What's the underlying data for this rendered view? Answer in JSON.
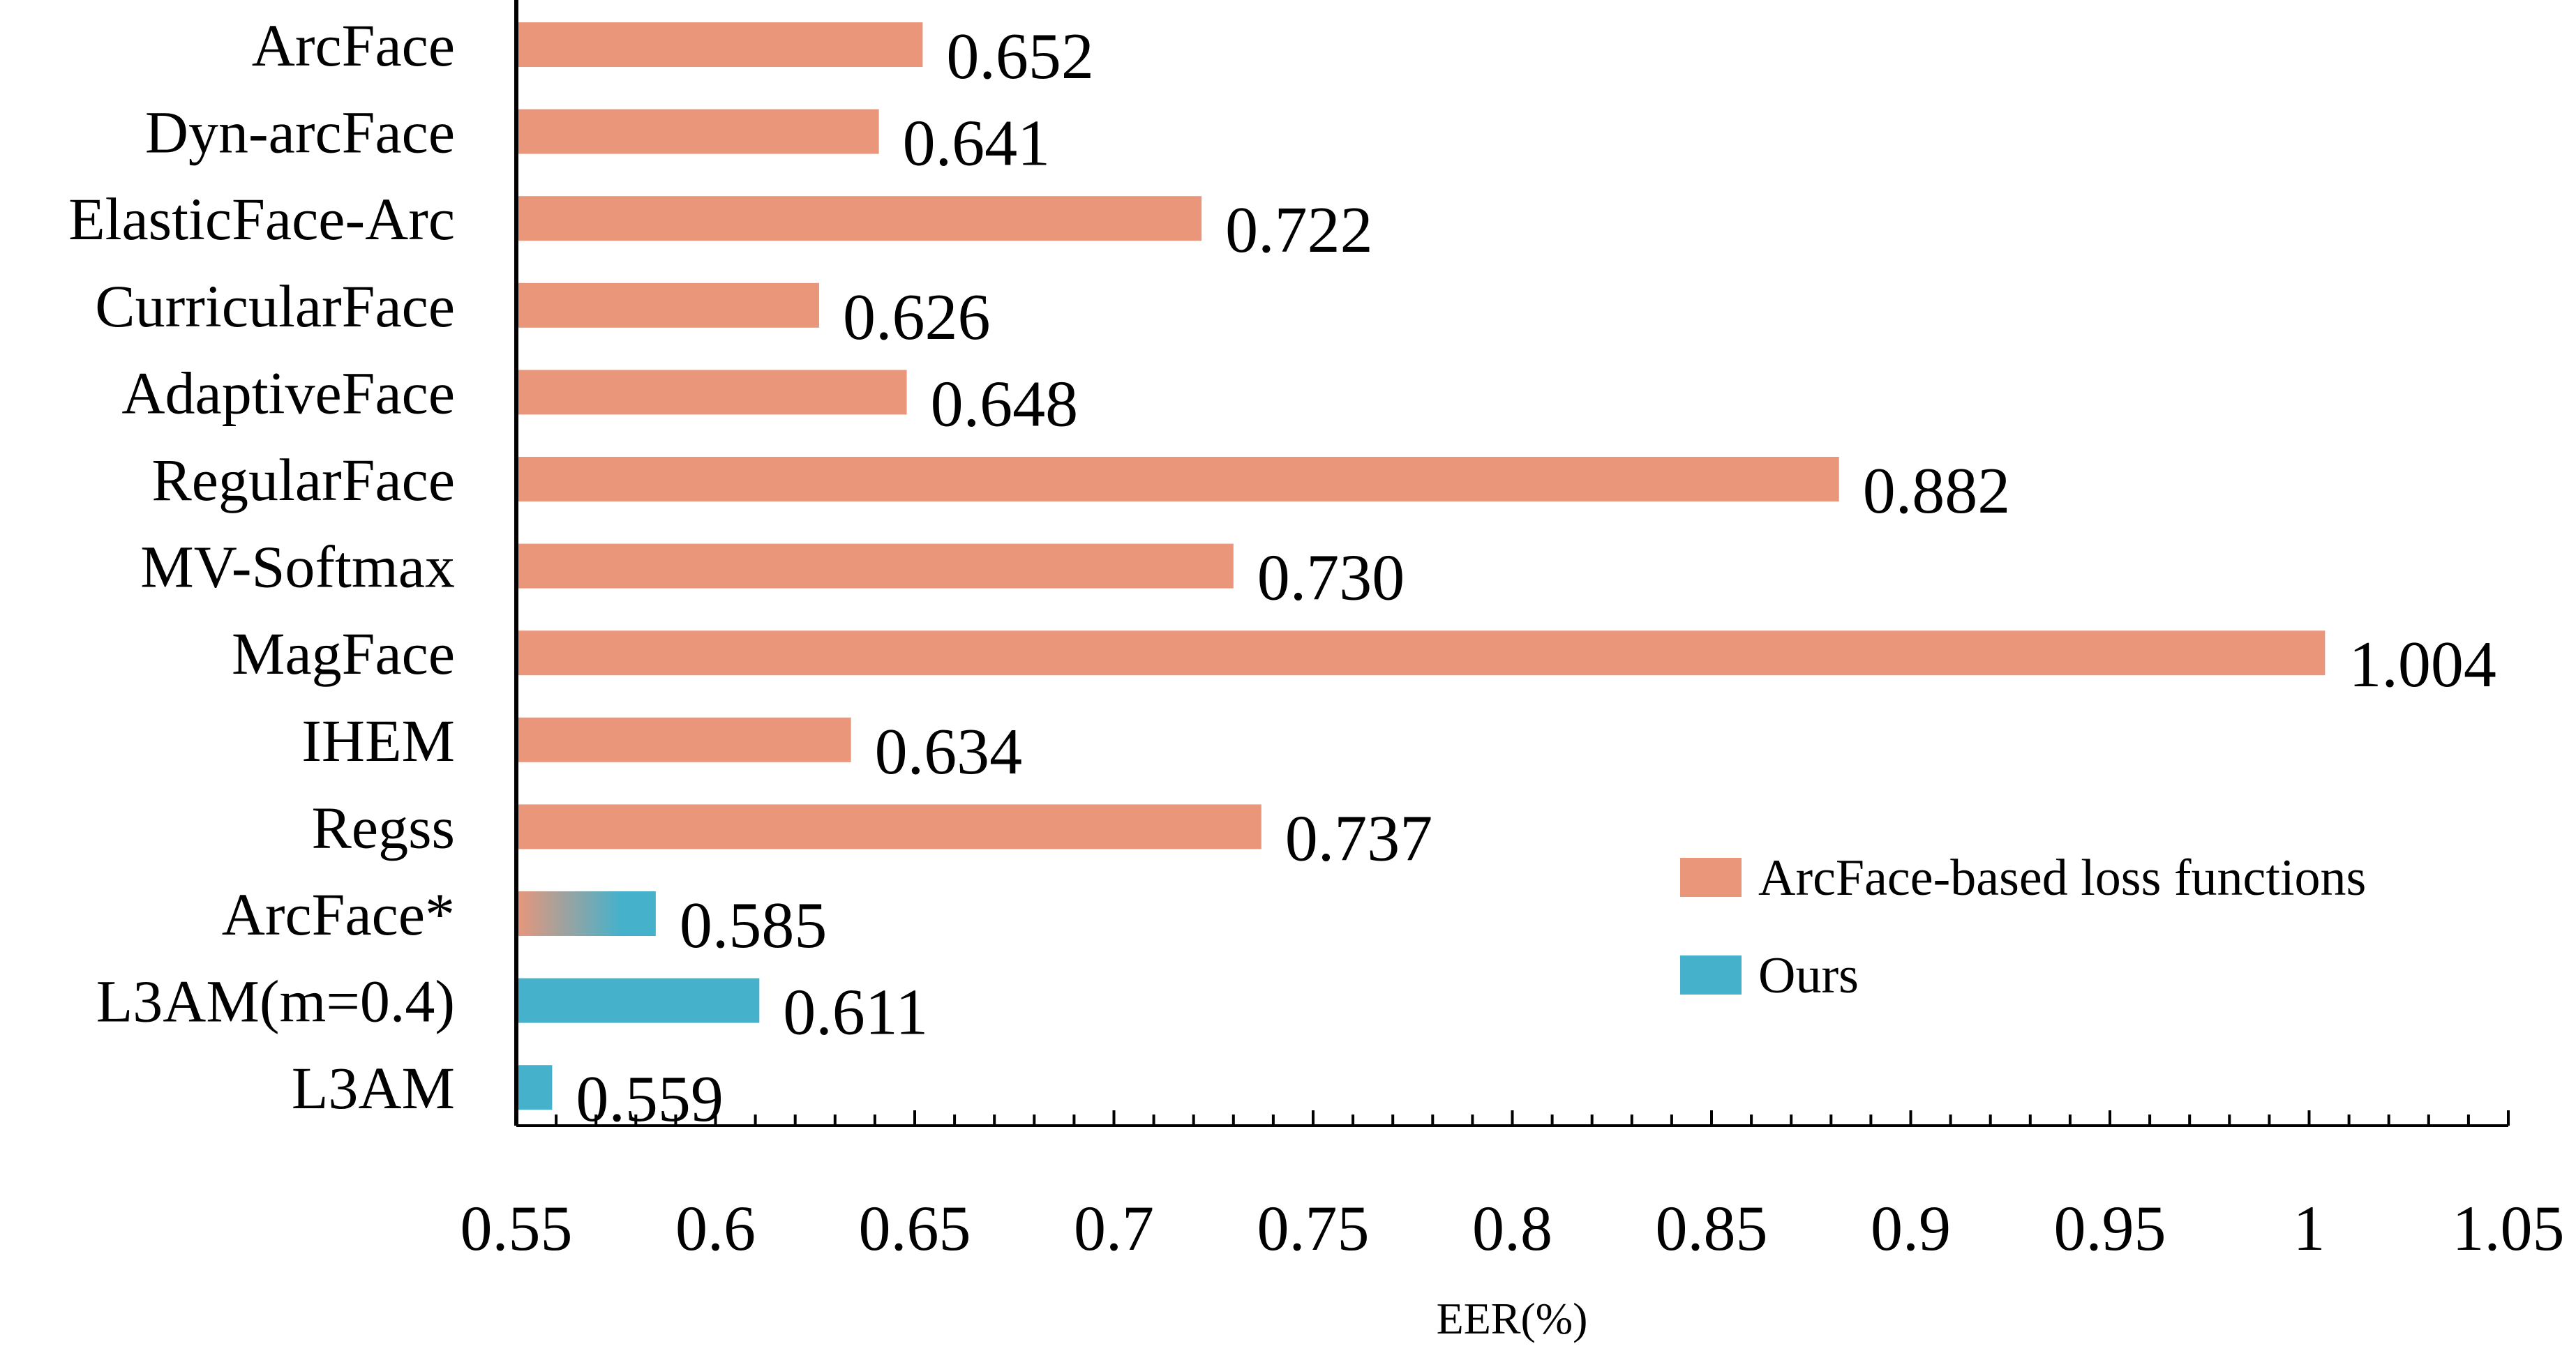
{
  "chart_data": {
    "type": "bar",
    "orientation": "horizontal",
    "title": "",
    "xlabel": "EER(%)",
    "ylabel": "",
    "xlim": [
      0.55,
      1.05
    ],
    "x_ticks": [
      "0.55",
      "0.6",
      "0.65",
      "0.7",
      "0.75",
      "0.8",
      "0.85",
      "0.9",
      "0.95",
      "1",
      "1.05"
    ],
    "x_minor_tick_step": 0.01,
    "grid": false,
    "legend_position": "bottom-right",
    "categories": [
      "ArcFace",
      "Dyn-arcFace",
      "ElasticFace-Arc",
      "CurricularFace",
      "AdaptiveFace",
      "RegularFace",
      "MV-Softmax",
      "MagFace",
      "IHEM",
      "Regss",
      "ArcFace*",
      "L3AM(m=0.4)",
      "L3AM"
    ],
    "values": [
      0.652,
      0.641,
      0.722,
      0.626,
      0.648,
      0.882,
      0.73,
      1.004,
      0.634,
      0.737,
      0.585,
      0.611,
      0.559
    ],
    "value_labels": [
      "0.652",
      "0.641",
      "0.722",
      "0.626",
      "0.648",
      "0.882",
      "0.730",
      "1.004",
      "0.634",
      "0.737",
      "0.585",
      "0.611",
      "0.559"
    ],
    "bar_groups": [
      "arcface",
      "arcface",
      "arcface",
      "arcface",
      "arcface",
      "arcface",
      "arcface",
      "arcface",
      "arcface",
      "arcface",
      "gradient",
      "ours",
      "ours"
    ],
    "series": [
      {
        "key": "arcface",
        "name": "ArcFace-based loss functions",
        "color": "#E9967A"
      },
      {
        "key": "ours",
        "name": "Ours",
        "color": "#45B1CB"
      }
    ],
    "gradient_colors": [
      "#E9967A",
      "#45B1CB"
    ]
  }
}
